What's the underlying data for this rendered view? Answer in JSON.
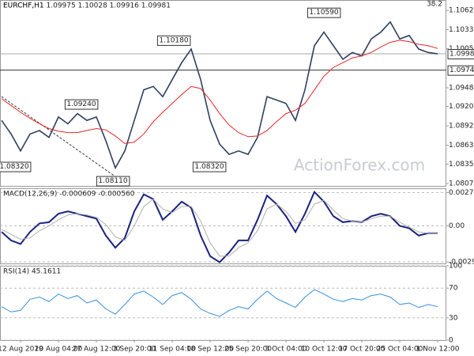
{
  "header": "EURCHF,H1 1.09975 1.10028 1.09916 1.09981",
  "watermark": "ActionForex.com",
  "fib_label": "38.2",
  "chart_data": [
    {
      "type": "line",
      "title": "EURCHF,H1",
      "categories": [
        null,
        null,
        "12 Aug 2019",
        null,
        null,
        null,
        "20 Aug 04:00",
        null,
        null,
        null,
        "27 Aug 12:00",
        null,
        null,
        null,
        "3 Sep 20:00",
        null,
        null,
        null,
        "11 Sep 04:00",
        null,
        null,
        null,
        "18 Sep 12:00",
        null,
        null,
        null,
        "25 Sep 20:00",
        null,
        null,
        null,
        "3 Oct 04:00",
        null,
        null,
        null,
        "10 Oct 12:00",
        null,
        null,
        null,
        "17 Oct 20:00",
        null,
        null,
        null,
        "25 Oct 04:00",
        null,
        null,
        null,
        "1 Nov 12:00"
      ],
      "series": [
        {
          "name": "Price",
          "color": "#2f3f5f",
          "values": [
            1.09,
            1.088,
            1.0855,
            1.088,
            1.0885,
            1.0875,
            1.0905,
            1.0895,
            1.091,
            1.09,
            1.0905,
            1.087,
            1.083,
            1.0855,
            1.09,
            1.0945,
            1.095,
            1.0935,
            1.096,
            1.0985,
            1.1005,
            1.096,
            1.09,
            1.0865,
            1.085,
            1.0855,
            1.085,
            1.0875,
            1.0935,
            1.093,
            1.0925,
            1.09,
            1.0945,
            1.101,
            1.103,
            1.101,
            1.099,
            1.1,
            1.0995,
            1.102,
            1.103,
            1.1045,
            1.102,
            1.1025,
            1.1005,
            1.1,
            1.0998
          ]
        },
        {
          "name": "MA",
          "color": "#e02828",
          "values": [
            1.0932,
            1.0922,
            1.0912,
            1.0903,
            1.0895,
            1.0888,
            1.0884,
            1.0882,
            1.0882,
            1.0885,
            1.0888,
            1.0886,
            1.0877,
            1.0866,
            1.0868,
            1.088,
            1.0898,
            1.0912,
            1.0925,
            1.0938,
            1.095,
            1.0947,
            1.093,
            1.091,
            1.0893,
            1.0882,
            1.0876,
            1.0877,
            1.0885,
            1.0898,
            1.091,
            1.0915,
            1.0925,
            1.0945,
            1.0965,
            1.0978,
            1.0985,
            1.0992,
            1.0995,
            1.1,
            1.1008,
            1.1015,
            1.1018,
            1.1016,
            1.1012,
            1.101,
            1.1006
          ]
        }
      ],
      "ylim": [
        1.08035,
        1.10773
      ],
      "yticks": [
        {
          "value": 1.1062,
          "label": "1.10620"
        },
        {
          "value": 1.10335,
          "label": "1.10335"
        },
        {
          "value": 1.10055,
          "label": "1.10055"
        },
        {
          "value": 1.0948,
          "label": "1.09480"
        },
        {
          "value": 1.09205,
          "label": "1.09205"
        },
        {
          "value": 1.0892,
          "label": "1.08920"
        },
        {
          "value": 1.08635,
          "label": "1.08635"
        },
        {
          "value": 1.08355,
          "label": "1.08355"
        },
        {
          "value": 1.0807,
          "label": "1.08070"
        }
      ],
      "hlines": [
        {
          "value": 1.09981,
          "label": "1.09981",
          "color": "#aaaaaa"
        },
        {
          "value": 1.0974,
          "label": "1.09740",
          "color": "#333333"
        }
      ],
      "annotations": [
        {
          "value": 1.1059,
          "label": "1.10590"
        },
        {
          "value": 1.1018,
          "label": "1.10180"
        },
        {
          "value": 1.0924,
          "label": "1.09240"
        },
        {
          "value": 1.0832,
          "label": "1.08320"
        },
        {
          "value": 1.0811,
          "label": "1.08110"
        },
        {
          "value": 1.0832,
          "label": "1.08320"
        }
      ]
    },
    {
      "type": "line",
      "title": "MACD(12,26,9) -0.000609 -0.000560",
      "series": [
        {
          "name": "MACD",
          "color": "#1a237e",
          "values": [
            -0.0005,
            -0.0012,
            -0.0015,
            -0.0005,
            0.0002,
            0.0003,
            0.001,
            0.0012,
            0.001,
            0.0008,
            0.0006,
            -0.0008,
            -0.0018,
            -0.001,
            0.0012,
            0.0026,
            0.0022,
            0.0005,
            0.0012,
            0.002,
            0.0015,
            -0.0008,
            -0.0025,
            -0.003,
            -0.0022,
            -0.0012,
            -0.0012,
            0.0005,
            0.0025,
            0.0018,
            0.0008,
            -0.0005,
            0.001,
            0.0028,
            0.002,
            0.0008,
            0.0003,
            0.0004,
            0.0003,
            0.0008,
            0.001,
            0.0008,
            0.0,
            -0.0002,
            -0.0008,
            -0.0006,
            -0.0006
          ]
        },
        {
          "name": "Signal",
          "color": "#b0b0b0",
          "values": [
            -0.0003,
            -0.0007,
            -0.0011,
            -0.001,
            -0.0004,
            0.0,
            0.0005,
            0.0009,
            0.001,
            0.0009,
            0.0007,
            0.0001,
            -0.0009,
            -0.0012,
            0.0,
            0.0016,
            0.0022,
            0.0014,
            0.0011,
            0.0016,
            0.0016,
            0.0004,
            -0.0014,
            -0.0025,
            -0.0025,
            -0.0018,
            -0.0014,
            -0.0004,
            0.0014,
            0.0018,
            0.0012,
            0.0002,
            0.0005,
            0.0018,
            0.0021,
            0.0013,
            0.0006,
            0.0004,
            0.0003,
            0.0006,
            0.0008,
            0.0008,
            0.0003,
            -0.0001,
            -0.0005,
            -0.0006,
            -0.0006
          ]
        }
      ],
      "ylim": [
        -0.0031,
        0.0031
      ],
      "yticks": [
        0.002747,
        {
          "value": 0,
          "label": "0.00"
        },
        -0.002972
      ]
    },
    {
      "type": "line",
      "title": "RSI(14) 45.1611",
      "series": [
        {
          "name": "RSI",
          "color": "#3a8fd8",
          "values": [
            45,
            38,
            40,
            55,
            58,
            52,
            62,
            56,
            60,
            50,
            54,
            42,
            35,
            48,
            62,
            66,
            58,
            48,
            60,
            64,
            55,
            42,
            36,
            32,
            40,
            45,
            42,
            55,
            66,
            56,
            50,
            44,
            58,
            68,
            62,
            55,
            52,
            56,
            54,
            60,
            62,
            58,
            48,
            50,
            44,
            48,
            45
          ]
        }
      ],
      "ylim": [
        0,
        100
      ],
      "yticks": [
        100,
        70,
        30,
        0
      ]
    }
  ]
}
